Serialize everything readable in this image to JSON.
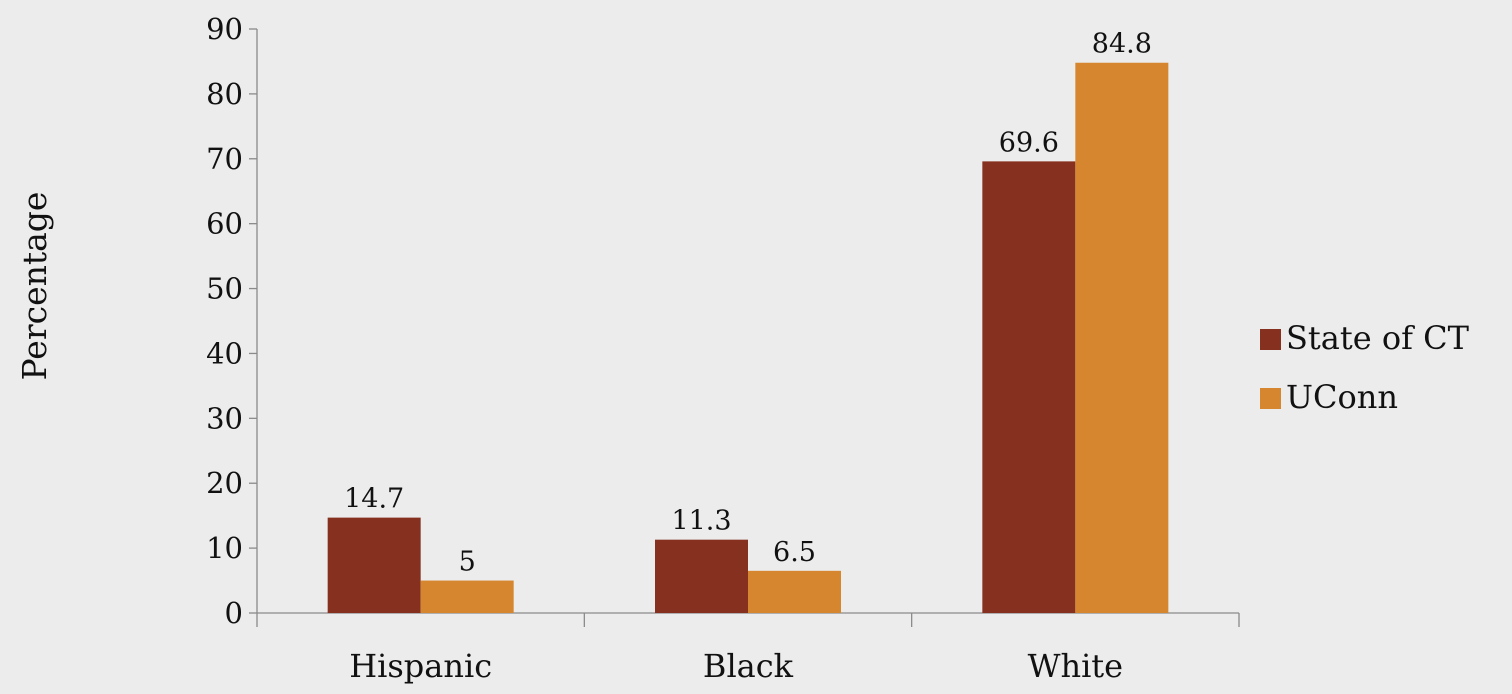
{
  "chart_data": {
    "type": "bar",
    "title": "",
    "xlabel": "",
    "ylabel": "Percentage",
    "ylim": [
      0,
      90
    ],
    "yticks": [
      0,
      10,
      20,
      30,
      40,
      50,
      60,
      70,
      80,
      90
    ],
    "categories": [
      "Hispanic",
      "Black",
      "White"
    ],
    "series": [
      {
        "name": "State of CT",
        "values": [
          14.7,
          11.3,
          69.6
        ],
        "labels": [
          "14.7",
          "11.3",
          "69.6"
        ],
        "color": "#86311f"
      },
      {
        "name": "UConn",
        "values": [
          5,
          6.5,
          84.8
        ],
        "labels": [
          "5",
          "6.5",
          "84.8"
        ],
        "color": "#d6862f"
      }
    ],
    "grid": false,
    "legend_position": "right"
  }
}
